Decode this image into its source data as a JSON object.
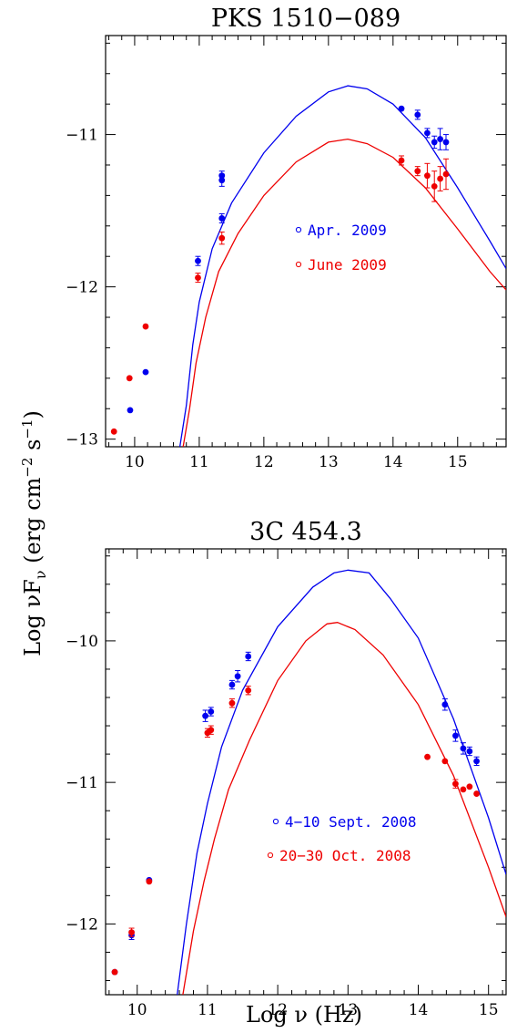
{
  "figure": {
    "ylabel": "Log νFν (erg cm⁻² s⁻¹)",
    "ylabel_parts": {
      "main": "Log νF",
      "sub": "ν",
      "rest": " (erg cm",
      "sup1": "−2",
      "mid": " s",
      "sup2": "−1",
      "end": ")"
    },
    "xlabel": "Log ν (Hz)"
  },
  "colors": {
    "blue": "#0000ee",
    "red": "#ee0000"
  },
  "chart_data": [
    {
      "type": "scatter",
      "title": "PKS 1510−089",
      "xlim": [
        9.55,
        15.75
      ],
      "ylim": [
        -13.05,
        -10.35
      ],
      "xticks": [
        10,
        11,
        12,
        13,
        14,
        15
      ],
      "xtick_labels": [
        "10",
        "11",
        "12",
        "13",
        "14",
        "15"
      ],
      "yticks": [
        -13,
        -12,
        -11
      ],
      "ytick_labels": [
        "−13",
        "−12",
        "−11"
      ],
      "grid": false,
      "legend_placement": "center",
      "series": [
        {
          "name": "Apr. 2009",
          "color": "#0000ee",
          "points": [
            {
              "x": 9.93,
              "y": -12.81,
              "err": 0.02
            },
            {
              "x": 10.17,
              "y": -12.56,
              "err": 0.015
            },
            {
              "x": 10.98,
              "y": -11.83,
              "err": 0.03
            },
            {
              "x": 11.35,
              "y": -11.55,
              "err": 0.03
            },
            {
              "x": 11.35,
              "y": -11.3,
              "err": 0.04
            },
            {
              "x": 11.35,
              "y": -11.27,
              "err": 0.03
            },
            {
              "x": 14.13,
              "y": -10.83,
              "err": 0.02
            },
            {
              "x": 14.38,
              "y": -10.87,
              "err": 0.03
            },
            {
              "x": 14.53,
              "y": -10.99,
              "err": 0.03
            },
            {
              "x": 14.64,
              "y": -11.05,
              "err": 0.04
            },
            {
              "x": 14.73,
              "y": -11.03,
              "err": 0.07
            },
            {
              "x": 14.82,
              "y": -11.05,
              "err": 0.05
            }
          ],
          "model_curve": [
            [
              10.7,
              -13.05
            ],
            [
              10.8,
              -12.78
            ],
            [
              10.9,
              -12.38
            ],
            [
              11.0,
              -12.1
            ],
            [
              11.2,
              -11.75
            ],
            [
              11.5,
              -11.45
            ],
            [
              12.0,
              -11.12
            ],
            [
              12.5,
              -10.88
            ],
            [
              13.0,
              -10.72
            ],
            [
              13.3,
              -10.68
            ],
            [
              13.6,
              -10.7
            ],
            [
              14.0,
              -10.8
            ],
            [
              14.5,
              -11.02
            ],
            [
              15.0,
              -11.35
            ],
            [
              15.5,
              -11.7
            ],
            [
              15.75,
              -11.88
            ]
          ]
        },
        {
          "name": "June 2009",
          "color": "#ee0000",
          "points": [
            {
              "x": 9.68,
              "y": -12.95,
              "err": 0.015
            },
            {
              "x": 9.92,
              "y": -12.6,
              "err": 0.02
            },
            {
              "x": 10.17,
              "y": -12.26,
              "err": 0.02
            },
            {
              "x": 10.98,
              "y": -11.94,
              "err": 0.03
            },
            {
              "x": 11.35,
              "y": -11.68,
              "err": 0.04
            },
            {
              "x": 14.13,
              "y": -11.17,
              "err": 0.03
            },
            {
              "x": 14.38,
              "y": -11.24,
              "err": 0.03
            },
            {
              "x": 14.53,
              "y": -11.27,
              "err": 0.08
            },
            {
              "x": 14.64,
              "y": -11.34,
              "err": 0.1
            },
            {
              "x": 14.73,
              "y": -11.29,
              "err": 0.08
            },
            {
              "x": 14.82,
              "y": -11.26,
              "err": 0.1
            }
          ],
          "model_curve": [
            [
              10.75,
              -13.05
            ],
            [
              10.85,
              -12.8
            ],
            [
              10.95,
              -12.5
            ],
            [
              11.1,
              -12.2
            ],
            [
              11.3,
              -11.9
            ],
            [
              11.6,
              -11.65
            ],
            [
              12.0,
              -11.4
            ],
            [
              12.5,
              -11.18
            ],
            [
              13.0,
              -11.05
            ],
            [
              13.3,
              -11.03
            ],
            [
              13.6,
              -11.06
            ],
            [
              14.0,
              -11.15
            ],
            [
              14.5,
              -11.35
            ],
            [
              15.0,
              -11.62
            ],
            [
              15.5,
              -11.9
            ],
            [
              15.75,
              -12.02
            ]
          ]
        }
      ]
    },
    {
      "type": "scatter",
      "title": "3C 454.3",
      "xlim": [
        9.55,
        15.25
      ],
      "ylim": [
        -12.5,
        -9.35
      ],
      "xticks": [
        10,
        11,
        12,
        13,
        14,
        15
      ],
      "xtick_labels": [
        "10",
        "11",
        "12",
        "13",
        "14",
        "15"
      ],
      "yticks": [
        -12,
        -11,
        -10
      ],
      "ytick_labels": [
        "−12",
        "−11",
        "−10"
      ],
      "grid": false,
      "legend_placement": "bottom-right",
      "series": [
        {
          "name": "4−10 Sept. 2008",
          "color": "#0000ee",
          "points": [
            {
              "x": 9.68,
              "y": -12.34,
              "err": 0.015
            },
            {
              "x": 9.92,
              "y": -12.08,
              "err": 0.03
            },
            {
              "x": 10.17,
              "y": -11.69,
              "err": 0.02
            },
            {
              "x": 10.97,
              "y": -10.53,
              "err": 0.04
            },
            {
              "x": 11.05,
              "y": -10.5,
              "err": 0.03
            },
            {
              "x": 11.35,
              "y": -10.31,
              "err": 0.03
            },
            {
              "x": 11.43,
              "y": -10.25,
              "err": 0.04
            },
            {
              "x": 11.58,
              "y": -10.11,
              "err": 0.03
            },
            {
              "x": 14.38,
              "y": -10.45,
              "err": 0.04
            },
            {
              "x": 14.53,
              "y": -10.67,
              "err": 0.04
            },
            {
              "x": 14.64,
              "y": -10.76,
              "err": 0.04
            },
            {
              "x": 14.73,
              "y": -10.78,
              "err": 0.03
            },
            {
              "x": 14.83,
              "y": -10.85,
              "err": 0.03
            }
          ],
          "model_curve": [
            [
              10.57,
              -12.5
            ],
            [
              10.7,
              -12.0
            ],
            [
              10.85,
              -11.5
            ],
            [
              11.0,
              -11.15
            ],
            [
              11.2,
              -10.75
            ],
            [
              11.5,
              -10.35
            ],
            [
              12.0,
              -9.9
            ],
            [
              12.5,
              -9.62
            ],
            [
              12.8,
              -9.52
            ],
            [
              13.0,
              -9.5
            ],
            [
              13.3,
              -9.52
            ],
            [
              13.6,
              -9.7
            ],
            [
              14.0,
              -9.98
            ],
            [
              14.5,
              -10.55
            ],
            [
              15.0,
              -11.25
            ],
            [
              15.25,
              -11.65
            ]
          ]
        },
        {
          "name": "20−30 Oct. 2008",
          "color": "#ee0000",
          "points": [
            {
              "x": 9.68,
              "y": -12.34,
              "err": 0.015
            },
            {
              "x": 9.92,
              "y": -12.06,
              "err": 0.03
            },
            {
              "x": 10.17,
              "y": -11.7,
              "err": 0.02
            },
            {
              "x": 11.0,
              "y": -10.65,
              "err": 0.03
            },
            {
              "x": 11.05,
              "y": -10.63,
              "err": 0.03
            },
            {
              "x": 11.35,
              "y": -10.44,
              "err": 0.03
            },
            {
              "x": 11.58,
              "y": -10.35,
              "err": 0.03
            },
            {
              "x": 14.13,
              "y": -10.82,
              "err": 0.02
            },
            {
              "x": 14.38,
              "y": -10.85,
              "err": 0.02
            },
            {
              "x": 14.53,
              "y": -11.01,
              "err": 0.03
            },
            {
              "x": 14.64,
              "y": -11.05,
              "err": 0.02
            },
            {
              "x": 14.73,
              "y": -11.03,
              "err": 0.02
            },
            {
              "x": 14.83,
              "y": -11.08,
              "err": 0.02
            }
          ],
          "model_curve": [
            [
              10.65,
              -12.5
            ],
            [
              10.8,
              -12.05
            ],
            [
              10.95,
              -11.7
            ],
            [
              11.1,
              -11.4
            ],
            [
              11.3,
              -11.05
            ],
            [
              11.6,
              -10.7
            ],
            [
              12.0,
              -10.28
            ],
            [
              12.4,
              -10.0
            ],
            [
              12.7,
              -9.88
            ],
            [
              12.85,
              -9.87
            ],
            [
              13.1,
              -9.92
            ],
            [
              13.5,
              -10.1
            ],
            [
              14.0,
              -10.45
            ],
            [
              14.5,
              -10.95
            ],
            [
              15.0,
              -11.6
            ],
            [
              15.25,
              -11.95
            ]
          ]
        }
      ]
    }
  ]
}
